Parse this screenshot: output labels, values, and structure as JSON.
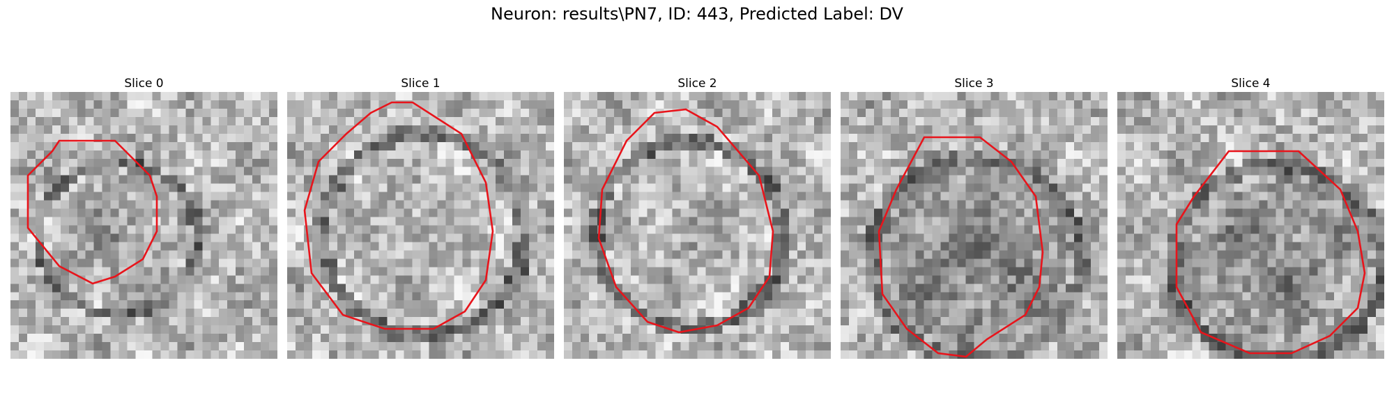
{
  "figure": {
    "title": "Neuron: results\\PN7, ID: 443, Predicted Label: DV"
  },
  "panels": [
    {
      "title": "Slice 0",
      "contour_color": "#e8141b"
    },
    {
      "title": "Slice 1",
      "contour_color": "#e8141b"
    },
    {
      "title": "Slice 2",
      "contour_color": "#e8141b"
    },
    {
      "title": "Slice 3",
      "contour_color": "#e8141b"
    },
    {
      "title": "Slice 4",
      "contour_color": "#e8141b"
    }
  ]
}
